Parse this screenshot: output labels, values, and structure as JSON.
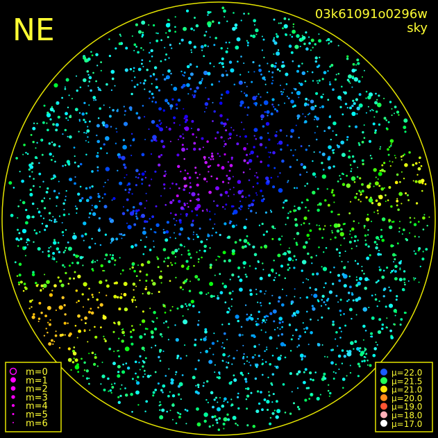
{
  "header": {
    "direction": "NE",
    "frame_id": "03k61091o0296w",
    "mode": "sky"
  },
  "magnitude_legend": [
    "m=0",
    "m=1",
    "m=2",
    "m=3",
    "m=4",
    "m=5",
    "m=6"
  ],
  "brightness_legend": [
    "μ=22.0",
    "μ=21.5",
    "μ=21.0",
    "μ=20.0",
    "μ=19.0",
    "μ=18.0",
    "μ=17.0"
  ]
}
